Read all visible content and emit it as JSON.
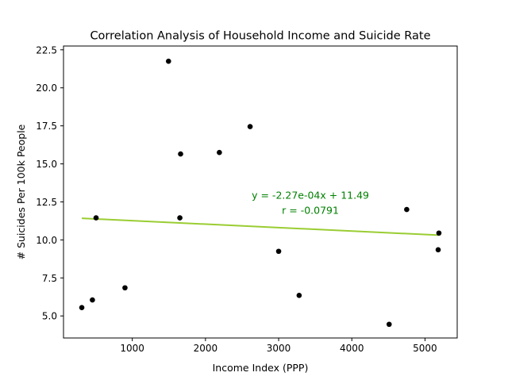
{
  "chart_data": {
    "type": "scatter",
    "title": "Correlation Analysis of Household Income and Suicide Rate",
    "xlabel": "Income Index (PPP)",
    "ylabel": "# Suicides Per 100k People",
    "xlim": [
      60,
      5440
    ],
    "ylim": [
      3.55,
      22.75
    ],
    "x_ticks": [
      1000,
      2000,
      3000,
      4000,
      5000
    ],
    "y_ticks": [
      5.0,
      7.5,
      10.0,
      12.5,
      15.0,
      17.5,
      20.0,
      22.5
    ],
    "x_tick_labels": [
      "1000",
      "2000",
      "3000",
      "4000",
      "5000"
    ],
    "y_tick_labels": [
      "5.0",
      "7.5",
      "10.0",
      "12.5",
      "15.0",
      "17.5",
      "20.0",
      "22.5"
    ],
    "grid": false,
    "points": [
      {
        "x": 310,
        "y": 5.55
      },
      {
        "x": 455,
        "y": 6.05
      },
      {
        "x": 505,
        "y": 11.45
      },
      {
        "x": 900,
        "y": 6.85
      },
      {
        "x": 1495,
        "y": 21.75
      },
      {
        "x": 1650,
        "y": 11.45
      },
      {
        "x": 1660,
        "y": 15.65
      },
      {
        "x": 2190,
        "y": 15.75
      },
      {
        "x": 2610,
        "y": 17.45
      },
      {
        "x": 3000,
        "y": 9.25
      },
      {
        "x": 3280,
        "y": 6.35
      },
      {
        "x": 4510,
        "y": 4.45
      },
      {
        "x": 4750,
        "y": 12.0
      },
      {
        "x": 5180,
        "y": 9.35
      },
      {
        "x": 5190,
        "y": 10.45
      }
    ],
    "regression": {
      "slope": -0.000227,
      "intercept": 11.49,
      "x_range": [
        310,
        5190
      ],
      "equation_label": "y = -2.27e-04x + 11.49",
      "r_label": "r = -0.0791",
      "annotation_x": 3000,
      "annotation_y": 12.5
    },
    "colors": {
      "points": "#000000",
      "regression_line": "#9acd32",
      "annotation_text": "#008000",
      "axes": "#000000",
      "text": "#000000"
    }
  }
}
